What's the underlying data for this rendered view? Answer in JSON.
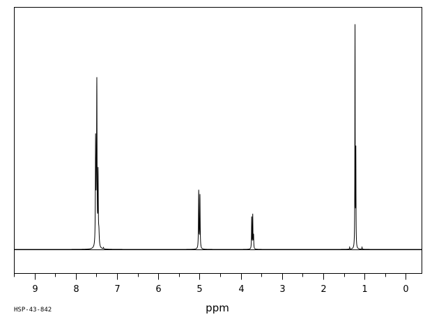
{
  "chart_data": {
    "type": "line",
    "xlabel": "ppm",
    "ylabel": "",
    "xlim": [
      9.5,
      -0.4
    ],
    "ylim": [
      0,
      100
    ],
    "x_reversed": true,
    "grid": false,
    "tick_labels": [
      "9",
      "8",
      "7",
      "6",
      "5",
      "4",
      "3",
      "2",
      "1",
      "0"
    ],
    "tick_values": [
      9,
      8,
      7,
      6,
      5,
      4,
      3,
      2,
      1,
      0
    ],
    "minor_tick_step": 0.5,
    "series": [
      {
        "peaks": [
          {
            "ppm": 7.52,
            "height": 46,
            "width": 0.006
          },
          {
            "ppm": 7.49,
            "height": 66,
            "width": 0.006
          },
          {
            "ppm": 7.46,
            "height": 32,
            "width": 0.006
          },
          {
            "ppm": 7.5,
            "height": 17,
            "width": 0.01
          },
          {
            "ppm": 7.44,
            "height": 6,
            "width": 0.01
          },
          {
            "ppm": 7.33,
            "height": 0.6,
            "width": 0.006
          },
          {
            "ppm": 5.02,
            "height": 26,
            "width": 0.006
          },
          {
            "ppm": 4.99,
            "height": 24,
            "width": 0.006
          },
          {
            "ppm": 3.735,
            "height": 14.7,
            "width": 0.005
          },
          {
            "ppm": 3.71,
            "height": 15.2,
            "width": 0.005
          },
          {
            "ppm": 3.69,
            "height": 6,
            "width": 0.005
          },
          {
            "ppm": 1.23,
            "height": 100,
            "width": 0.004
          },
          {
            "ppm": 1.21,
            "height": 43,
            "width": 0.004
          },
          {
            "ppm": 1.36,
            "height": 0.9,
            "width": 0.005
          },
          {
            "ppm": 1.06,
            "height": 0.9,
            "width": 0.005
          }
        ]
      }
    ]
  },
  "footer": {
    "code": "HSP-43-842"
  }
}
